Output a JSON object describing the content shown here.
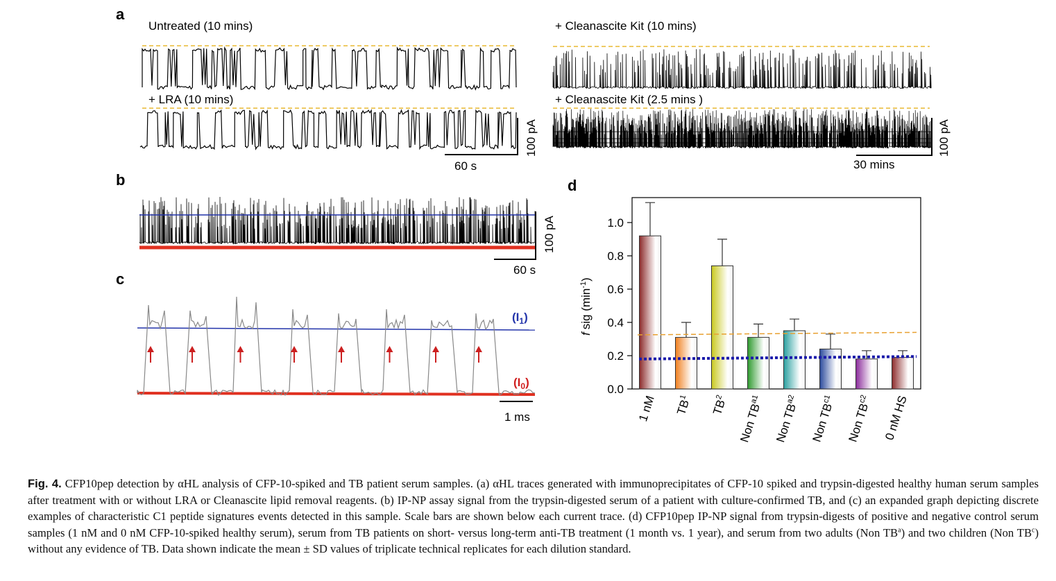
{
  "panels": {
    "a": {
      "letter": "a",
      "traces": [
        {
          "label": "Untreated (10 mins)"
        },
        {
          "label": "+ Cleanascite Kit (10 mins)"
        },
        {
          "label": "+ LRA (10 mins)"
        },
        {
          "label": "+ Cleanascite Kit (2.5 mins )"
        }
      ],
      "scale_left": {
        "time": "60 s",
        "current": "100 pA"
      },
      "scale_right": {
        "time": "30 mins",
        "current": "100 pA"
      }
    },
    "b": {
      "letter": "b",
      "scale": {
        "time": "60 s",
        "current": "100 pA"
      }
    },
    "c": {
      "letter": "c",
      "level_i1": "(I",
      "sub_i1": "1",
      "level_i0": "(I",
      "sub_i0": "0",
      "close": ")",
      "scale": {
        "time": "1 ms"
      }
    }
  },
  "chart_data": {
    "type": "bar",
    "panel_letter": "d",
    "ylabel_prefix": "f",
    "ylabel_main": "sig (min",
    "ylabel_sup": "-1",
    "ylabel_end": ")",
    "ylim": [
      0,
      1.15
    ],
    "yticks": [
      "0.0",
      "0.2",
      "0.4",
      "0.6",
      "0.8",
      "1.0"
    ],
    "bars": [
      {
        "label": "1 nM",
        "sup": "",
        "value": 0.92,
        "error": 0.2,
        "color": "#8c2b2b"
      },
      {
        "label": "TB",
        "sup": "1",
        "value": 0.31,
        "error": 0.09,
        "color": "#f08020"
      },
      {
        "label": "TB",
        "sup": "2",
        "value": 0.74,
        "error": 0.16,
        "color": "#c8c81e"
      },
      {
        "label": "Non TB",
        "sup": "a1",
        "value": 0.31,
        "error": 0.08,
        "color": "#2e9a2e"
      },
      {
        "label": "Non TB",
        "sup": "a2",
        "value": 0.35,
        "error": 0.07,
        "color": "#2aa0a0"
      },
      {
        "label": "Non TB",
        "sup": "c1",
        "value": 0.24,
        "error": 0.09,
        "color": "#2a4a9c"
      },
      {
        "label": "Non TB",
        "sup": "c2",
        "value": 0.18,
        "error": 0.05,
        "color": "#8a2a9a"
      },
      {
        "label": "0 nM HS",
        "sup": "",
        "value": 0.19,
        "error": 0.04,
        "color": "#8c2b2b"
      }
    ],
    "threshold_orange": [
      0.325,
      0.34
    ],
    "threshold_blue": [
      0.18,
      0.195
    ]
  },
  "caption": {
    "label": "Fig. 4.",
    "p1": "CFP10pep detection by αHL analysis of CFP-10-spiked and TB patient serum samples. (a) αHL traces generated with immunoprecipitates of CFP-10 spiked and trypsin-digested healthy human serum samples after treatment with or without LRA or Cleanascite lipid removal reagents. (b) IP-NP assay signal from the trypsin-digested serum of a patient with culture-confirmed TB, and (c) an expanded graph depicting discrete examples of characteristic C1 peptide signatures events detected in this sample. Scale bars are shown below each current trace. (d) CFP10pep IP-NP signal from trypsin-digests of positive and negative control serum samples (1 nM and 0 nM CFP-10-spiked healthy serum), serum from TB patients on short- versus long-term anti-TB treatment (1 month vs. 1 year), and serum from two adults (Non TB",
    "supA": "a",
    "p2": ") and two children (Non TB",
    "supC": "c",
    "p3": ") without any evidence of TB. Data shown indicate the mean ± SD values of triplicate technical replicates for each dilution standard."
  }
}
